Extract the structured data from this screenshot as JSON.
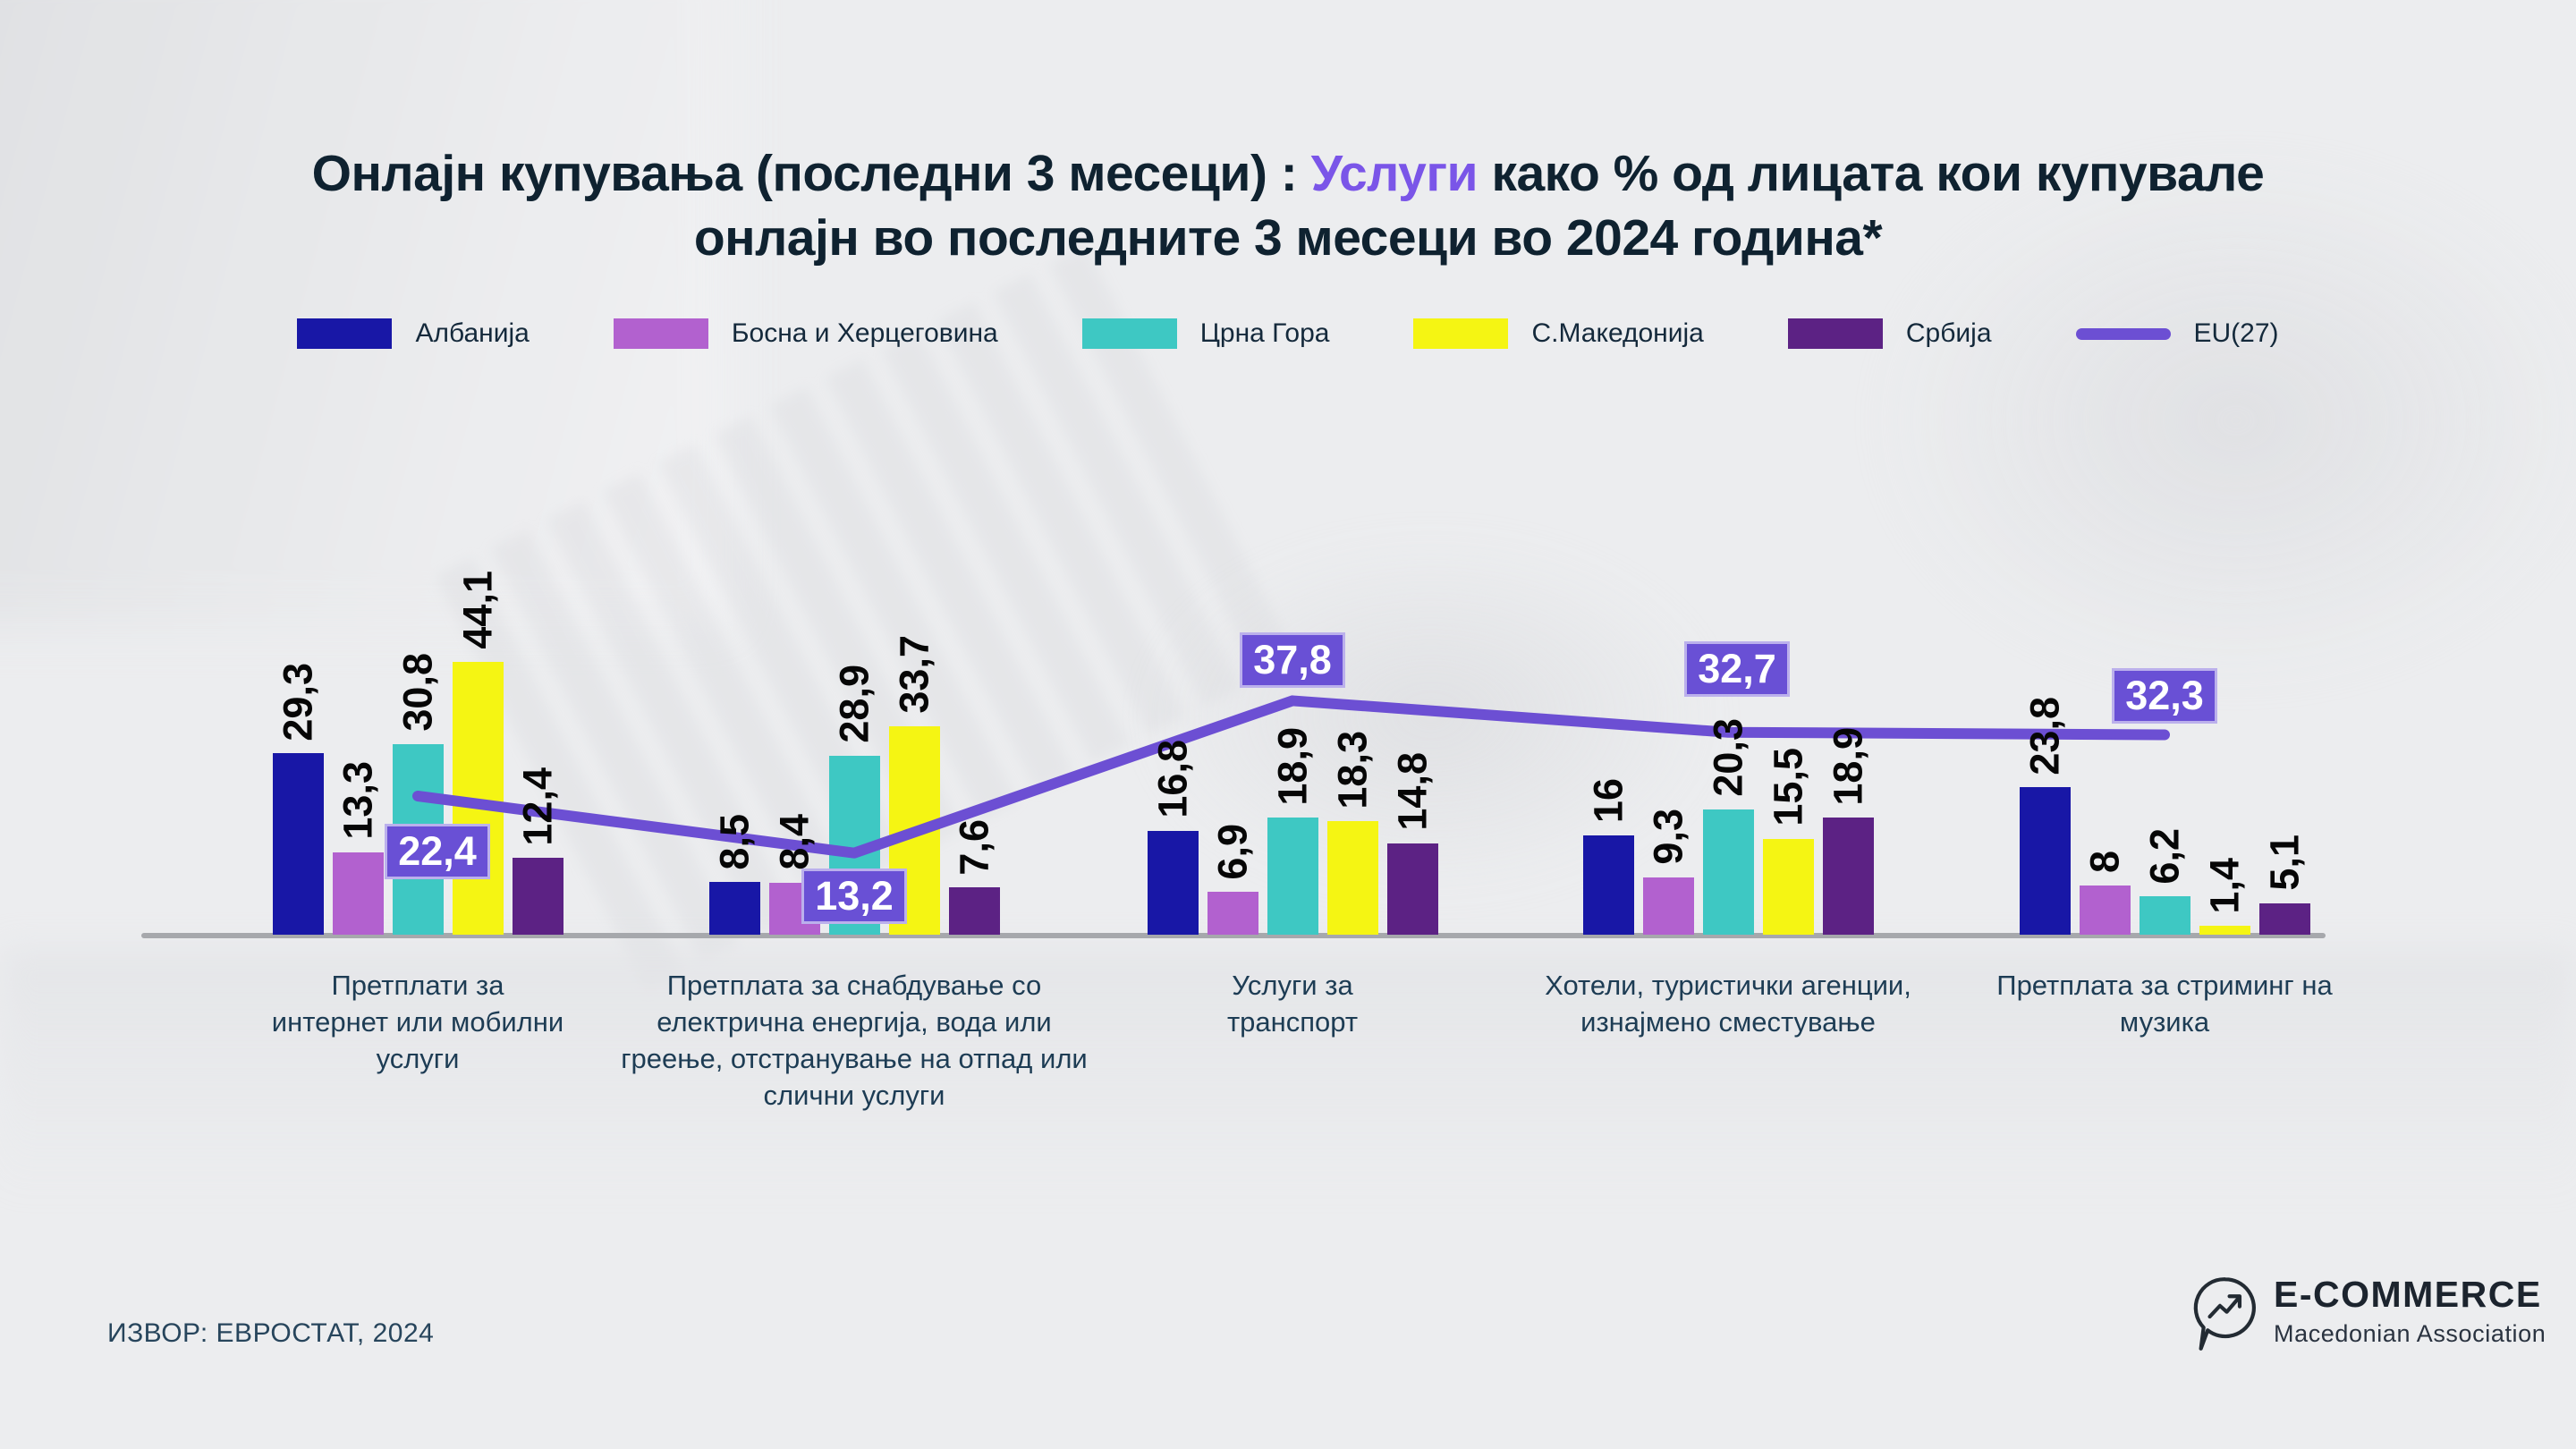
{
  "page": {
    "background_color": "#ECEDEF"
  },
  "title": {
    "pre": "Онлајн купувања (последни 3 месеци) : ",
    "highlight": "Услуги",
    "post": " како % од лицата кои купувале онлајн во последните 3 месеци во 2024 година*",
    "text_color": "#0F2230",
    "highlight_color": "#7A55E8"
  },
  "chart_data": {
    "type": "bar",
    "title": "Онлајн купувања (последни 3 месеци): Услуги како % од лицата кои купувале онлајн во последните 3 месеци во 2024 година*",
    "categories": [
      "Претплати за интернет или мобилни услуги",
      "Претплата за снабдување со електрична енергија, вода или греење, отстранување на отпад или слични услуги",
      "Услуги за транспорт",
      "Хотели, туристички агенции, изнајмено сместување",
      "Претплата за стриминг на музика"
    ],
    "series": [
      {
        "name": "Албанија",
        "color": "#1817A6",
        "values": [
          29.3,
          8.5,
          16.8,
          16,
          23.8
        ],
        "labels": [
          "29,3",
          "8,5",
          "16,8",
          "16",
          "23,8"
        ]
      },
      {
        "name": "Босна и Херцеговина",
        "color": "#B261CF",
        "values": [
          13.3,
          8.4,
          6.9,
          9.3,
          8
        ],
        "labels": [
          "13,3",
          "8,4",
          "6,9",
          "9,3",
          "8"
        ]
      },
      {
        "name": "Црна Гора",
        "color": "#3EC8C3",
        "values": [
          30.8,
          28.9,
          18.9,
          20.3,
          6.2
        ],
        "labels": [
          "30,8",
          "28,9",
          "18,9",
          "20,3",
          "6,2"
        ]
      },
      {
        "name": "С.Македонија",
        "color": "#F5F513",
        "values": [
          44.1,
          33.7,
          18.3,
          15.5,
          1.4
        ],
        "labels": [
          "44,1",
          "33,7",
          "18,3",
          "15,5",
          "1,4"
        ]
      },
      {
        "name": "Србија",
        "color": "#5C2284",
        "values": [
          12.4,
          7.6,
          14.8,
          18.9,
          5.1
        ],
        "labels": [
          "12,4",
          "7,6",
          "14,8",
          "18,9",
          "5,1"
        ]
      }
    ],
    "line_series": {
      "name": "EU(27)",
      "color": "#6C4FD3",
      "values": [
        22.4,
        13.2,
        37.8,
        32.7,
        32.3
      ],
      "labels": [
        "22,4",
        "13,2",
        "37,8",
        "32,7",
        "32,3"
      ],
      "callout_bg": "#6950D5",
      "callout_text_color": "#FFFFFF"
    },
    "ylim": [
      0,
      50
    ],
    "grid": false,
    "legend_position": "top",
    "value_labels": "rotated 90°, comma decimal separator",
    "axis_color": "#A6A8AC"
  },
  "source": {
    "text": "ИЗВОР: ЕВРОСТАТ, 2024"
  },
  "logo": {
    "icon": "speech-bubble-growth-arrow",
    "name": "E-COMMERCE",
    "subtitle": "Macedonian Association"
  }
}
